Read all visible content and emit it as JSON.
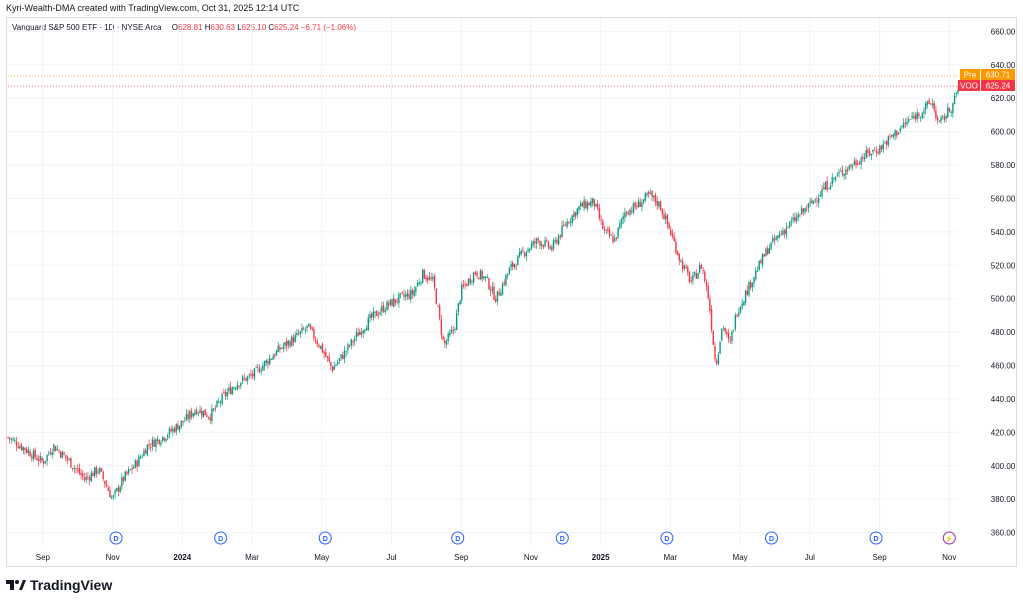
{
  "header": {
    "caption": "Kyri-Wealth-DMA created with TradingView.com, Oct 31, 2025 12:14 UTC"
  },
  "legend": {
    "symbol": "Vanguard S&P 500 ETF · 1D · NYSE Arca",
    "o_label": "O",
    "o_value": "628.81",
    "h_label": "H",
    "h_value": "630.63",
    "l_label": "L",
    "l_value": "625.10",
    "c_label": "C",
    "c_value": "625.24",
    "change": "−6.71 (−1.06%)"
  },
  "badges": {
    "pre_label": "Pre",
    "pre_value": "630.71",
    "voo_label": "VOO",
    "voo_value": "625.24"
  },
  "footer": {
    "brand": "TradingView"
  },
  "colors": {
    "up": "#089981",
    "down": "#f23645",
    "pre": "#ff9800",
    "event": "#2962ff",
    "split": "#9c27b0"
  },
  "chart_data": {
    "type": "candlestick",
    "title": "Vanguard S&P 500 ETF · 1D · NYSE Arca",
    "ylim": [
      355,
      668
    ],
    "y_ticks": [
      360,
      380,
      400,
      420,
      440,
      460,
      480,
      500,
      520,
      540,
      560,
      580,
      600,
      620,
      640,
      660
    ],
    "x_ticks": [
      "Sep",
      "Nov",
      "2024",
      "Mar",
      "May",
      "Jul",
      "Sep",
      "Nov",
      "2025",
      "Mar",
      "May",
      "Jul",
      "Sep",
      "Nov"
    ],
    "x_tick_months": [
      1,
      3,
      5,
      7,
      9,
      11,
      13,
      15,
      17,
      19,
      21,
      23,
      25,
      27
    ],
    "grid": true,
    "series_close": [
      [
        0,
        417
      ],
      [
        0.5,
        410
      ],
      [
        1,
        402
      ],
      [
        1.3,
        412
      ],
      [
        1.7,
        404
      ],
      [
        2.2,
        392
      ],
      [
        2.6,
        398
      ],
      [
        3,
        380
      ],
      [
        3.3,
        392
      ],
      [
        3.7,
        402
      ],
      [
        4,
        412
      ],
      [
        4.5,
        418
      ],
      [
        5,
        426
      ],
      [
        5.4,
        434
      ],
      [
        5.8,
        430
      ],
      [
        6.2,
        442
      ],
      [
        6.6,
        450
      ],
      [
        7,
        454
      ],
      [
        7.4,
        462
      ],
      [
        7.8,
        470
      ],
      [
        8.2,
        476
      ],
      [
        8.6,
        483
      ],
      [
        9,
        470
      ],
      [
        9.3,
        458
      ],
      [
        9.6,
        466
      ],
      [
        10,
        478
      ],
      [
        10.4,
        488
      ],
      [
        10.8,
        495
      ],
      [
        11.2,
        500
      ],
      [
        11.6,
        503
      ],
      [
        11.9,
        515
      ],
      [
        12.2,
        510
      ],
      [
        12.5,
        472
      ],
      [
        12.8,
        482
      ],
      [
        13,
        505
      ],
      [
        13.4,
        516
      ],
      [
        13.7,
        512
      ],
      [
        14,
        500
      ],
      [
        14.4,
        518
      ],
      [
        14.8,
        528
      ],
      [
        15.2,
        535
      ],
      [
        15.6,
        530
      ],
      [
        16,
        545
      ],
      [
        16.4,
        555
      ],
      [
        16.8,
        558
      ],
      [
        17.1,
        540
      ],
      [
        17.4,
        535
      ],
      [
        17.7,
        552
      ],
      [
        18,
        555
      ],
      [
        18.4,
        562
      ],
      [
        18.7,
        556
      ],
      [
        19,
        540
      ],
      [
        19.3,
        522
      ],
      [
        19.6,
        510
      ],
      [
        19.9,
        520
      ],
      [
        20.1,
        500
      ],
      [
        20.3,
        460
      ],
      [
        20.5,
        485
      ],
      [
        20.7,
        472
      ],
      [
        20.9,
        492
      ],
      [
        21.2,
        505
      ],
      [
        21.5,
        518
      ],
      [
        21.8,
        530
      ],
      [
        22.2,
        540
      ],
      [
        22.6,
        548
      ],
      [
        23,
        556
      ],
      [
        23.4,
        566
      ],
      [
        23.8,
        574
      ],
      [
        24.2,
        580
      ],
      [
        24.6,
        586
      ],
      [
        25,
        590
      ],
      [
        25.4,
        598
      ],
      [
        25.8,
        606
      ],
      [
        26.2,
        612
      ],
      [
        26.5,
        618
      ],
      [
        26.7,
        604
      ],
      [
        26.9,
        610
      ],
      [
        27.1,
        616
      ],
      [
        27.25,
        625.24
      ]
    ],
    "last": {
      "open": 628.81,
      "high": 630.63,
      "low": 625.1,
      "close": 625.24,
      "change": -6.71,
      "change_pct": -1.06,
      "pre": 630.71
    },
    "event_markers": [
      "D",
      "D",
      "D",
      "D",
      "D",
      "D",
      "D",
      "D",
      "D"
    ],
    "event_months": [
      3.1,
      6.1,
      9.1,
      12.9,
      15.9,
      18.9,
      21.9,
      24.9,
      27
    ]
  }
}
